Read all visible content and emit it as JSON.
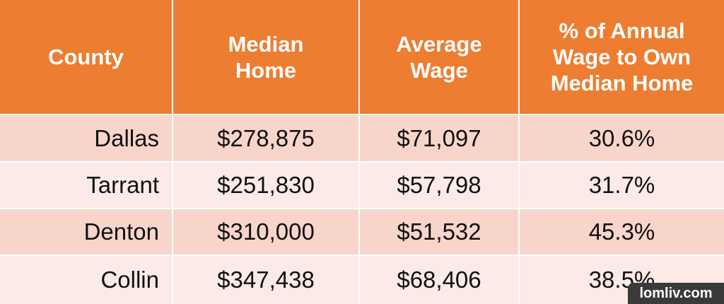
{
  "table": {
    "header": [
      [
        "County"
      ],
      [
        "Median",
        "Home"
      ],
      [
        "Average",
        "Wage"
      ],
      [
        "% of Annual",
        "Wage to Own",
        "Median Home"
      ]
    ],
    "rows": [
      [
        "Dallas",
        "$278,875",
        "$71,097",
        "30.6%"
      ],
      [
        "Tarrant",
        "$251,830",
        "$57,798",
        "31.7%"
      ],
      [
        "Denton",
        "$310,000",
        "$51,532",
        "45.3%"
      ],
      [
        "Collin",
        "$347,438",
        "$68,406",
        "38.5%"
      ]
    ]
  },
  "watermark": "lomliv.com"
}
